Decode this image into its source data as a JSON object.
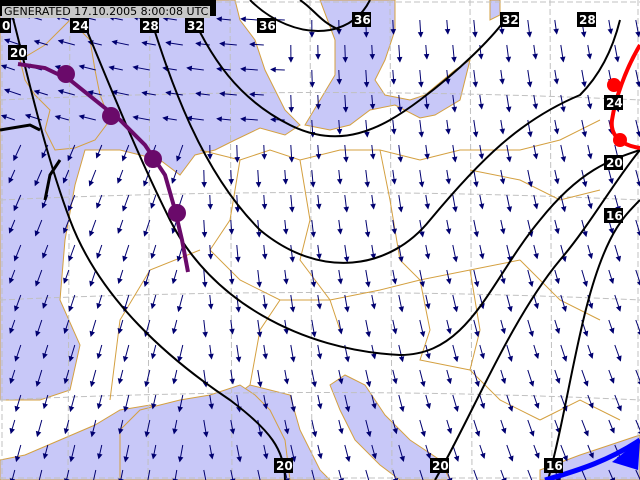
{
  "header": {
    "generated_label": "GENERATED 17.10.2005 8:00:08 UTC"
  },
  "colors": {
    "sea": "#c8c8f8",
    "land": "#ffffff",
    "border": "#d4a040",
    "wind": "#000070",
    "isoline": "#000000",
    "occluded_front": "#6a0a6a",
    "warm_front": "#ff0000",
    "cold_front": "#0000ff",
    "grid": "#c0c0c0"
  },
  "isoline_labels": [
    {
      "id": "tl-edge",
      "text": "0"
    },
    {
      "id": "left-20",
      "text": "20"
    },
    {
      "id": "top-24",
      "text": "24"
    },
    {
      "id": "top-28",
      "text": "28"
    },
    {
      "id": "top-32",
      "text": "32"
    },
    {
      "id": "top-36a",
      "text": "36"
    },
    {
      "id": "top-36b",
      "text": "36"
    },
    {
      "id": "top-32b",
      "text": "32"
    },
    {
      "id": "top-28b",
      "text": "28"
    },
    {
      "id": "right-24",
      "text": "24"
    },
    {
      "id": "right-20",
      "text": "20"
    },
    {
      "id": "right-16",
      "text": "16"
    },
    {
      "id": "bottom-20a",
      "text": "20"
    },
    {
      "id": "bottom-20b",
      "text": "20"
    },
    {
      "id": "bottom-16",
      "text": "16"
    }
  ],
  "fronts": [
    {
      "type": "occluded",
      "icon": "occluded-front-symbol"
    },
    {
      "type": "warm",
      "icon": "warm-front-symbol"
    },
    {
      "type": "cold",
      "icon": "cold-front-symbol"
    }
  ],
  "wind_field": {
    "icon": "wind-arrow"
  }
}
